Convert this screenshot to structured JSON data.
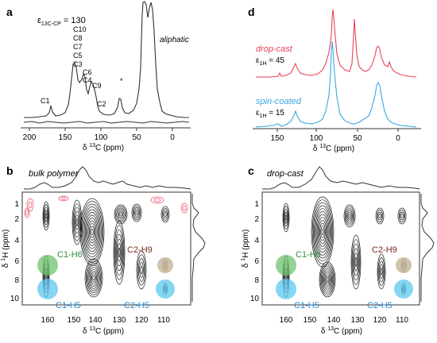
{
  "colors": {
    "line": "#333333",
    "contour": "#1a1a1a",
    "red": "#e8435a",
    "blue": "#3aa7e0",
    "green": "#6ec36e",
    "cyan": "#5cc8ef",
    "tan": "#c8b89c",
    "darkred": "#7a2a1e",
    "greenText": "#2e8b3a",
    "blueText": "#1f86c8"
  },
  "chart_data": [
    {
      "panel": "a",
      "type": "line",
      "xlabel": "δ 13C (ppm)",
      "xlim": [
        215,
        -15
      ],
      "xticks": [
        200,
        150,
        100,
        50,
        0
      ],
      "annotation": "ε13C-CP = 130",
      "region_label": "aliphatic",
      "peaks": [
        {
          "label": "C1",
          "ppm": 160
        },
        {
          "label": "C10 C8 C7 C5 C3",
          "ppm": 139
        },
        {
          "label": "C6 C4",
          "ppm": 128
        },
        {
          "label": "C9",
          "ppm": 121
        },
        {
          "label": "C2",
          "ppm": 111
        },
        {
          "label": "*",
          "ppm": 77
        }
      ]
    },
    {
      "panel": "d",
      "type": "line",
      "xlabel": "δ 13C (ppm)",
      "xlim": [
        175,
        -15
      ],
      "xticks": [
        150,
        100,
        50,
        0
      ],
      "series": [
        {
          "name": "drop-cast",
          "enhancement": "ε1H = 45",
          "color": "#e8435a"
        },
        {
          "name": "spin-coated",
          "enhancement": "ε1H = 15",
          "color": "#3aa7e0"
        }
      ]
    },
    {
      "panel": "b",
      "type": "heatmap",
      "title": "bulk polymer",
      "xlabel": "δ 13C (ppm)",
      "ylabel": "δ 1H (ppm)",
      "xlim": [
        167,
        101
      ],
      "ylim": [
        -0.5,
        11.8
      ],
      "xticks": [
        160,
        150,
        140,
        130,
        120,
        110
      ],
      "yticks": [
        1,
        2,
        4,
        6,
        8,
        10
      ],
      "annotations": [
        {
          "label": "C1-H6",
          "x": 159,
          "y": 7.2
        },
        {
          "label": "C1-H5",
          "x": 159,
          "y": 9.6
        },
        {
          "label": "C2-H9",
          "x": 107,
          "y": 7.6
        },
        {
          "label": "C2-H5",
          "x": 107,
          "y": 9.6
        }
      ]
    },
    {
      "panel": "c",
      "type": "heatmap",
      "title": "drop-cast",
      "xlabel": "δ 13C (ppm)",
      "ylabel": "δ 1H (ppm)",
      "xlim": [
        167,
        101
      ],
      "ylim": [
        -0.5,
        11.8
      ],
      "xticks": [
        160,
        150,
        140,
        130,
        120,
        110
      ],
      "yticks": [
        1,
        2,
        4,
        6,
        8,
        10
      ],
      "annotations": [
        {
          "label": "C1-H6",
          "x": 159,
          "y": 7.2
        },
        {
          "label": "C1-H5",
          "x": 159,
          "y": 9.6
        },
        {
          "label": "C2-H9",
          "x": 107,
          "y": 7.6
        },
        {
          "label": "C2-H5",
          "x": 107,
          "y": 9.6
        }
      ]
    }
  ],
  "labels": {
    "a": "a",
    "b": "b",
    "c": "c",
    "d": "d",
    "eps_a_main": "ε",
    "eps_a_sub": "13C-CP",
    "eps_a_val": " = 130",
    "peaks_a": [
      "C10",
      "C8",
      "C7",
      "C5",
      "C3",
      "C6",
      "C4",
      "C9",
      "C1",
      "C2",
      "*"
    ],
    "aliphatic": "aliphatic",
    "drop_cast": "drop-cast",
    "spin_coated": "spin-coated",
    "eps_d1_sub": "1H",
    "eps_d1_val": " = 45",
    "eps_d2_val": " = 15",
    "eps_d_main": "ε",
    "bulk_polymer": "bulk polymer",
    "drop_cast_c": "drop-cast",
    "xlab_delta": "δ ",
    "xlab_13": "13",
    "xlab_C": "C (ppm)",
    "ylab_delta": "δ ",
    "ylab_1": "1",
    "ylab_H": "H (ppm)",
    "c1h6": "C1-H6",
    "c1h5": "C1-H5",
    "c2h9": "C2-H9",
    "c2h5": "C2-H5",
    "ticks_a": [
      "200",
      "150",
      "100",
      "50",
      "0"
    ],
    "ticks_d": [
      "150",
      "100",
      "50",
      "0"
    ],
    "ticks_2dx": [
      "160",
      "150",
      "140",
      "130",
      "120",
      "110"
    ],
    "ticks_2dy": [
      "1",
      "2",
      "4",
      "6",
      "8",
      "10"
    ]
  }
}
